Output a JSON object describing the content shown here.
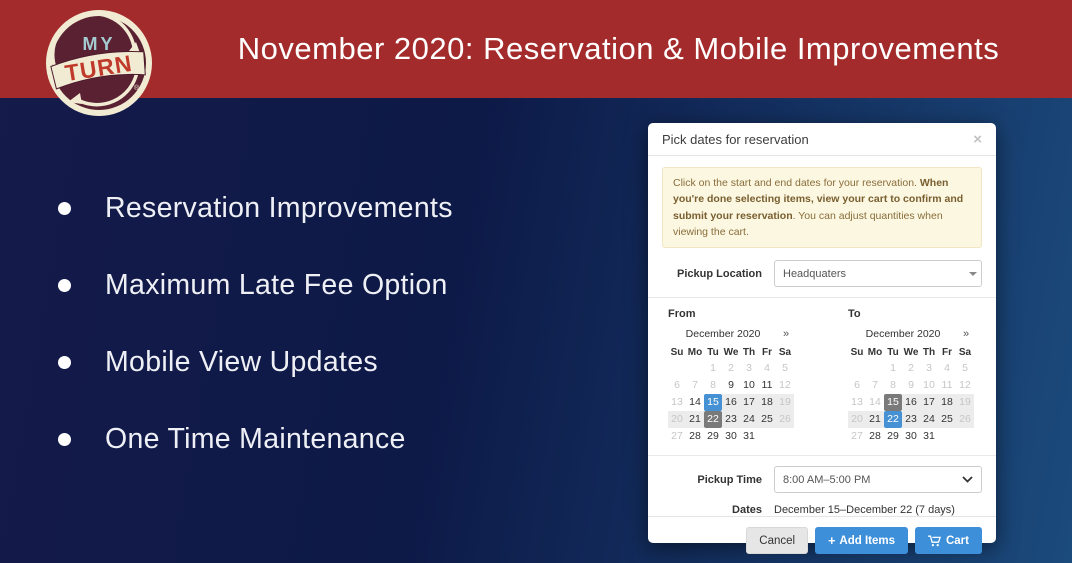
{
  "header": {
    "title": "November 2020: Reservation & Mobile Improvements"
  },
  "logo": {
    "top_text": "MY",
    "banner_text": "TURN",
    "registered": "®"
  },
  "bullets": [
    "Reservation Improvements",
    "Maximum Late Fee Option",
    "Mobile View Updates",
    "One Time Maintenance"
  ],
  "modal": {
    "title": "Pick dates for reservation",
    "close_icon": "×",
    "alert": {
      "pre": "Click on the start and end dates for your reservation. ",
      "bold": "When you're done selecting items, view your cart to confirm and submit your reservation",
      "post": ". You can adjust quantities when viewing the cart."
    },
    "pickup_location": {
      "label": "Pickup Location",
      "value": "Headquaters"
    },
    "calendars": [
      {
        "id": "from",
        "label": "From",
        "month": "December 2020",
        "next": "»",
        "dow": [
          "Su",
          "Mo",
          "Tu",
          "We",
          "Th",
          "Fr",
          "Sa"
        ],
        "weeks": [
          [
            null,
            null,
            [
              "1",
              "m"
            ],
            [
              "2",
              "m"
            ],
            [
              "3",
              "m"
            ],
            [
              "4",
              "m"
            ],
            [
              "5",
              "m"
            ]
          ],
          [
            [
              "6",
              "m"
            ],
            [
              "7",
              "m"
            ],
            [
              "8",
              "m"
            ],
            [
              "9",
              "n"
            ],
            [
              "10",
              "n"
            ],
            [
              "11",
              "n"
            ],
            [
              "12",
              "m"
            ]
          ],
          [
            [
              "13",
              "m"
            ],
            [
              "14",
              "n"
            ],
            [
              "15",
              "sb"
            ],
            [
              "16",
              "n r"
            ],
            [
              "17",
              "n r"
            ],
            [
              "18",
              "n r"
            ],
            [
              "19",
              "m r"
            ]
          ],
          [
            [
              "20",
              "m r"
            ],
            [
              "21",
              "n r"
            ],
            [
              "22",
              "sg"
            ],
            [
              "23",
              "n r"
            ],
            [
              "24",
              "n r"
            ],
            [
              "25",
              "n r"
            ],
            [
              "26",
              "m r"
            ]
          ],
          [
            [
              "27",
              "m"
            ],
            [
              "28",
              "n"
            ],
            [
              "29",
              "n"
            ],
            [
              "30",
              "n"
            ],
            [
              "31",
              "n"
            ],
            null,
            null
          ]
        ]
      },
      {
        "id": "to",
        "label": "To",
        "month": "December 2020",
        "next": "»",
        "dow": [
          "Su",
          "Mo",
          "Tu",
          "We",
          "Th",
          "Fr",
          "Sa"
        ],
        "weeks": [
          [
            null,
            null,
            [
              "1",
              "m"
            ],
            [
              "2",
              "m"
            ],
            [
              "3",
              "m"
            ],
            [
              "4",
              "m"
            ],
            [
              "5",
              "m"
            ]
          ],
          [
            [
              "6",
              "m"
            ],
            [
              "7",
              "m"
            ],
            [
              "8",
              "m"
            ],
            [
              "9",
              "m"
            ],
            [
              "10",
              "m"
            ],
            [
              "11",
              "m"
            ],
            [
              "12",
              "m"
            ]
          ],
          [
            [
              "13",
              "m"
            ],
            [
              "14",
              "m"
            ],
            [
              "15",
              "sg"
            ],
            [
              "16",
              "n r"
            ],
            [
              "17",
              "n r"
            ],
            [
              "18",
              "n r"
            ],
            [
              "19",
              "m r"
            ]
          ],
          [
            [
              "20",
              "m r"
            ],
            [
              "21",
              "n r"
            ],
            [
              "22",
              "sb"
            ],
            [
              "23",
              "n r"
            ],
            [
              "24",
              "n r"
            ],
            [
              "25",
              "n r"
            ],
            [
              "26",
              "m r"
            ]
          ],
          [
            [
              "27",
              "m"
            ],
            [
              "28",
              "n"
            ],
            [
              "29",
              "n"
            ],
            [
              "30",
              "n"
            ],
            [
              "31",
              "n"
            ],
            null,
            null
          ]
        ]
      }
    ],
    "pickup_time": {
      "label": "Pickup Time",
      "value": "8:00 AM–5:00 PM"
    },
    "dates": {
      "label": "Dates",
      "value": "December 15–December 22 (7 days)"
    },
    "footer": {
      "cancel_label": "Cancel",
      "add_items_plus": "+",
      "add_items_label": "Add Items",
      "cart_label": "Cart"
    }
  },
  "colors": {
    "header_red": "#a42b2b",
    "accent_blue": "#3d8fd9",
    "selected_blue": "#4691d3",
    "selected_gray": "#7a7a7a",
    "range_bg": "#ececec",
    "navy_dark": "#0d1947",
    "navy_light": "#1b4a7c",
    "alert_bg": "#fbf7e1",
    "alert_text": "#8a6d3b"
  }
}
